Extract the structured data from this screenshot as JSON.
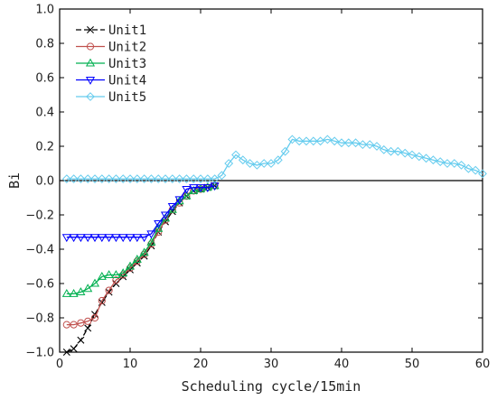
{
  "chart_data": {
    "type": "line",
    "title": "",
    "xlabel": "Scheduling cycle/15min",
    "ylabel": "Bi",
    "xlim": [
      0,
      60
    ],
    "ylim": [
      -1.0,
      1.0
    ],
    "x_ticks": [
      0,
      10,
      20,
      30,
      40,
      50,
      60
    ],
    "y_ticks": [
      -1.0,
      -0.8,
      -0.6,
      -0.4,
      -0.2,
      0.0,
      0.2,
      0.4,
      0.6,
      0.8,
      1.0
    ],
    "y_tick_labels": [
      "−1.0",
      "−0.8",
      "−0.6",
      "−0.4",
      "−0.2",
      "0.0",
      "0.2",
      "0.4",
      "0.6",
      "0.8",
      "1.0"
    ],
    "grid": false,
    "zero_line": true,
    "legend_position": "top-left",
    "series": [
      {
        "name": "Unit1",
        "color": "#000000",
        "marker": "x",
        "dash": "6,3",
        "x": [
          1,
          2,
          3,
          4,
          5,
          6,
          7,
          8,
          9,
          10,
          11,
          12,
          13,
          14,
          15,
          16,
          17,
          18,
          19,
          20,
          21,
          22
        ],
        "y": [
          -1.0,
          -0.98,
          -0.93,
          -0.86,
          -0.78,
          -0.71,
          -0.65,
          -0.6,
          -0.56,
          -0.52,
          -0.48,
          -0.44,
          -0.38,
          -0.3,
          -0.24,
          -0.18,
          -0.13,
          -0.09,
          -0.06,
          -0.05,
          -0.04,
          -0.03
        ]
      },
      {
        "name": "Unit2",
        "color": "#c0504d",
        "marker": "circle",
        "dash": "",
        "x": [
          1,
          2,
          3,
          4,
          5,
          6,
          7,
          8,
          9,
          10,
          11,
          12,
          13,
          14,
          15,
          16,
          17,
          18,
          19,
          20,
          21,
          22
        ],
        "y": [
          -0.84,
          -0.84,
          -0.83,
          -0.82,
          -0.8,
          -0.7,
          -0.64,
          -0.58,
          -0.55,
          -0.51,
          -0.47,
          -0.43,
          -0.37,
          -0.3,
          -0.23,
          -0.17,
          -0.13,
          -0.09,
          -0.06,
          -0.05,
          -0.04,
          -0.03
        ]
      },
      {
        "name": "Unit3",
        "color": "#00b050",
        "marker": "triangle",
        "dash": "",
        "x": [
          1,
          2,
          3,
          4,
          5,
          6,
          7,
          8,
          9,
          10,
          11,
          12,
          13,
          14,
          15,
          16,
          17,
          18,
          19,
          20,
          21,
          22
        ],
        "y": [
          -0.66,
          -0.66,
          -0.65,
          -0.63,
          -0.6,
          -0.56,
          -0.55,
          -0.55,
          -0.54,
          -0.5,
          -0.46,
          -0.42,
          -0.36,
          -0.28,
          -0.22,
          -0.17,
          -0.12,
          -0.09,
          -0.06,
          -0.05,
          -0.04,
          -0.03
        ]
      },
      {
        "name": "Unit4",
        "color": "#0000ff",
        "marker": "triangle-down",
        "dash": "",
        "x": [
          1,
          2,
          3,
          4,
          5,
          6,
          7,
          8,
          9,
          10,
          11,
          12,
          13,
          14,
          15,
          16,
          17,
          18,
          19,
          20,
          21,
          22
        ],
        "y": [
          -0.33,
          -0.33,
          -0.33,
          -0.33,
          -0.33,
          -0.33,
          -0.33,
          -0.33,
          -0.33,
          -0.33,
          -0.33,
          -0.33,
          -0.31,
          -0.25,
          -0.2,
          -0.15,
          -0.11,
          -0.05,
          -0.04,
          -0.04,
          -0.04,
          -0.03
        ]
      },
      {
        "name": "Unit5",
        "color": "#66ccee",
        "marker": "diamond",
        "dash": "",
        "x": [
          1,
          2,
          3,
          4,
          5,
          6,
          7,
          8,
          9,
          10,
          11,
          12,
          13,
          14,
          15,
          16,
          17,
          18,
          19,
          20,
          21,
          22,
          23,
          24,
          25,
          26,
          27,
          28,
          29,
          30,
          31,
          32,
          33,
          34,
          35,
          36,
          37,
          38,
          39,
          40,
          41,
          42,
          43,
          44,
          45,
          46,
          47,
          48,
          49,
          50,
          51,
          52,
          53,
          54,
          55,
          56,
          57,
          58,
          59,
          60
        ],
        "y": [
          0.01,
          0.01,
          0.01,
          0.01,
          0.01,
          0.01,
          0.01,
          0.01,
          0.01,
          0.01,
          0.01,
          0.01,
          0.01,
          0.01,
          0.01,
          0.01,
          0.01,
          0.01,
          0.01,
          0.01,
          0.01,
          0.01,
          0.03,
          0.1,
          0.15,
          0.12,
          0.1,
          0.09,
          0.1,
          0.1,
          0.12,
          0.17,
          0.24,
          0.23,
          0.23,
          0.23,
          0.23,
          0.24,
          0.23,
          0.22,
          0.22,
          0.22,
          0.21,
          0.21,
          0.2,
          0.18,
          0.17,
          0.17,
          0.16,
          0.15,
          0.14,
          0.13,
          0.12,
          0.11,
          0.1,
          0.1,
          0.09,
          0.07,
          0.06,
          0.04
        ]
      }
    ]
  }
}
